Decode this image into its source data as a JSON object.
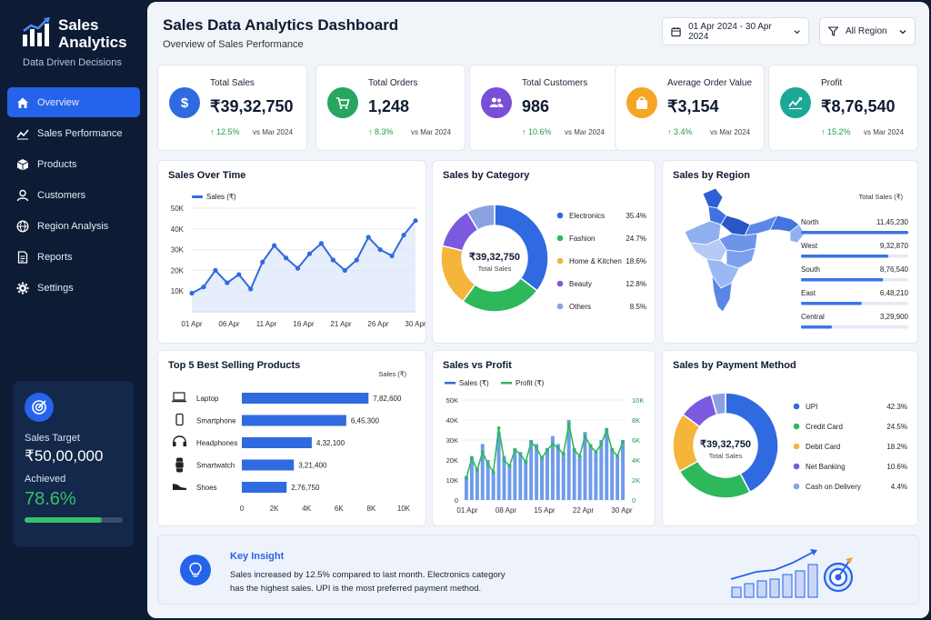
{
  "sidebar": {
    "brand_line1": "Sales",
    "brand_line2": "Analytics",
    "tagline": "Data Driven Decisions",
    "nav": [
      {
        "label": "Overview",
        "icon": "home-icon",
        "active": true
      },
      {
        "label": "Sales Performance",
        "icon": "trend-icon"
      },
      {
        "label": "Products",
        "icon": "box-icon"
      },
      {
        "label": "Customers",
        "icon": "user-icon"
      },
      {
        "label": "Region Analysis",
        "icon": "globe-icon"
      },
      {
        "label": "Reports",
        "icon": "document-icon"
      },
      {
        "label": "Settings",
        "icon": "gear-icon"
      }
    ],
    "target": {
      "label": "Sales Target",
      "value": "₹50,00,000",
      "achieved_label": "Achieved",
      "achieved_pct": "78.6%",
      "progress": 0.786
    }
  },
  "header": {
    "title": "Sales Data Analytics Dashboard",
    "subtitle": "Overview of Sales Performance",
    "date_range": "01 Apr 2024 - 30 Apr 2024",
    "region": "All Region"
  },
  "kpis": [
    {
      "label": "Total Sales",
      "value": "₹39,32,750",
      "change": "↑ 12.5%",
      "vs": "vs Mar 2024",
      "color": "#2f6ae0",
      "icon": "dollar-icon"
    },
    {
      "label": "Total Orders",
      "value": "1,248",
      "change": "↑ 8.3%",
      "vs": "vs Mar 2024",
      "color": "#28a55f",
      "icon": "cart-icon"
    },
    {
      "label": "Total Customers",
      "value": "986",
      "change": "↑ 10.6%",
      "vs": "vs Mar 2024",
      "color": "#7a4fd8",
      "icon": "users-icon"
    },
    {
      "label": "Average Order Value",
      "value": "₹3,154",
      "change": "↑ 3.4%",
      "vs": "vs Mar 2024",
      "color": "#f5a524",
      "icon": "bag-icon"
    },
    {
      "label": "Profit",
      "value": "₹8,76,540",
      "change": "↑ 15.2%",
      "vs": "vs Mar 2024",
      "color": "#1ba896",
      "icon": "chart-icon"
    }
  ],
  "chart_data": [
    {
      "type": "line",
      "title": "Sales Over Time",
      "series_name": "Sales (₹)",
      "x_ticks": [
        "01 Apr",
        "06 Apr",
        "11 Apr",
        "16 Apr",
        "21 Apr",
        "26 Apr",
        "30 Apr"
      ],
      "y_ticks": [
        "10K",
        "20K",
        "30K",
        "40K",
        "50K"
      ],
      "ylim": [
        0,
        50000
      ],
      "values": [
        9000,
        12000,
        20000,
        14000,
        18000,
        11000,
        24000,
        32000,
        26000,
        21000,
        28000,
        33000,
        25000,
        20000,
        25000,
        36000,
        30000,
        27000,
        37000,
        44000
      ]
    },
    {
      "type": "pie",
      "title": "Sales by Category",
      "center_value": "₹39,32,750",
      "center_label": "Total Sales",
      "slices": [
        {
          "label": "Electronics",
          "value": 35.4,
          "pct": "35.4%",
          "color": "#2f6ae0"
        },
        {
          "label": "Fashion",
          "value": 24.7,
          "pct": "24.7%",
          "color": "#2eb85c"
        },
        {
          "label": "Home & Kitchen",
          "value": 18.6,
          "pct": "18.6%",
          "color": "#f5b43a"
        },
        {
          "label": "Beauty",
          "value": 12.8,
          "pct": "12.8%",
          "color": "#7b5ae0"
        },
        {
          "label": "Others",
          "value": 8.5,
          "pct": "8.5%",
          "color": "#8aa3e0"
        }
      ]
    },
    {
      "type": "bar",
      "title": "Sales by Region",
      "column_label": "Total Sales (₹)",
      "rows": [
        {
          "label": "North",
          "value": 1145230,
          "text": "11,45,230"
        },
        {
          "label": "West",
          "value": 932870,
          "text": "9,32,870"
        },
        {
          "label": "South",
          "value": 876540,
          "text": "8,76,540"
        },
        {
          "label": "East",
          "value": 648210,
          "text": "6,48,210"
        },
        {
          "label": "Central",
          "value": 329900,
          "text": "3,29,900"
        }
      ]
    },
    {
      "type": "bar",
      "title": "Top 5 Best Selling Products",
      "unit_label": "Sales (₹)",
      "x_ticks": [
        "0",
        "2K",
        "4K",
        "6K",
        "8K",
        "10K"
      ],
      "xlim": [
        0,
        10000
      ],
      "rows": [
        {
          "label": "Laptop",
          "icon": "laptop-icon",
          "value": 7826,
          "text": "7,82,600"
        },
        {
          "label": "Smartphone",
          "icon": "phone-icon",
          "value": 6453,
          "text": "6,45,300"
        },
        {
          "label": "Headphones",
          "icon": "headphones-icon",
          "value": 4321,
          "text": "4,32,100"
        },
        {
          "label": "Smartwatch",
          "icon": "watch-icon",
          "value": 3214,
          "text": "3,21,400"
        },
        {
          "label": "Shoes",
          "icon": "shoe-icon",
          "value": 2767,
          "text": "2,76,750"
        }
      ]
    },
    {
      "type": "bar",
      "title": "Sales vs Profit",
      "series": [
        {
          "name": "Sales (₹)",
          "color": "#2f6ae0"
        },
        {
          "name": "Profit (₹)",
          "color": "#2eb85c"
        }
      ],
      "x_ticks": [
        "01 Apr",
        "08 Apr",
        "15 Apr",
        "22 Apr",
        "30 Apr"
      ],
      "y_left_ticks": [
        "0",
        "10K",
        "20K",
        "30K",
        "40K",
        "50K"
      ],
      "y_right_ticks": [
        "0",
        "2K",
        "4K",
        "6K",
        "8K",
        "10K"
      ],
      "sales": [
        12000,
        22000,
        16000,
        28000,
        20000,
        14000,
        34000,
        22000,
        18000,
        26000,
        24000,
        20000,
        30000,
        28000,
        22000,
        26000,
        32000,
        28000,
        24000,
        40000,
        26000,
        22000,
        34000,
        28000,
        24000,
        30000,
        36000,
        26000,
        22000,
        30000
      ],
      "profit": [
        2200,
        4200,
        3000,
        4800,
        3600,
        2800,
        7200,
        4000,
        3400,
        5000,
        4600,
        3800,
        5800,
        5200,
        4200,
        5000,
        5600,
        5200,
        4600,
        7600,
        5000,
        4400,
        6400,
        5400,
        4800,
        5600,
        7000,
        5000,
        4400,
        5800
      ]
    },
    {
      "type": "pie",
      "title": "Sales by Payment Method",
      "center_value": "₹39,32,750",
      "center_label": "Total Sales",
      "slices": [
        {
          "label": "UPI",
          "value": 42.3,
          "pct": "42.3%",
          "color": "#2f6ae0"
        },
        {
          "label": "Credit Card",
          "value": 24.5,
          "pct": "24.5%",
          "color": "#2eb85c"
        },
        {
          "label": "Debit Card",
          "value": 18.2,
          "pct": "18.2%",
          "color": "#f5b43a"
        },
        {
          "label": "Net Banking",
          "value": 10.6,
          "pct": "10.6%",
          "color": "#7b5ae0"
        },
        {
          "label": "Cash on Delivery",
          "value": 4.4,
          "pct": "4.4%",
          "color": "#8aa3e0"
        }
      ]
    }
  ],
  "insight": {
    "title": "Key Insight",
    "line1": "Sales increased by 12.5% compared to last month. Electronics category",
    "line2": "has the highest sales. UPI is the most preferred payment method."
  }
}
